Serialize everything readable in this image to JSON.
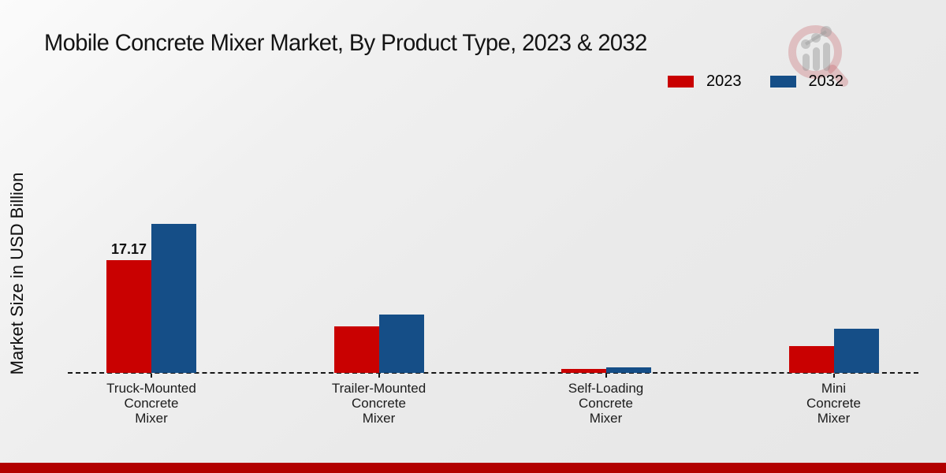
{
  "title": "Mobile Concrete Mixer Market, By Product Type, 2023 & 2032",
  "ylabel": "Market Size in USD Billion",
  "watermark_icon": "market-research-magnifier-logo",
  "footer": {
    "bar_color": "#b20000"
  },
  "chart_data": {
    "type": "bar",
    "title": "Mobile Concrete Mixer Market, By Product Type, 2023 & 2032",
    "xlabel": "",
    "ylabel": "Market Size in USD Billion",
    "categories": [
      "Truck-Mounted\nConcrete\nMixer",
      "Trailer-Mounted\nConcrete\nMixer",
      "Self-Loading\nConcrete\nMixer",
      "Mini\nConcrete\nMixer"
    ],
    "series": [
      {
        "name": "2023",
        "color": "#c90101",
        "values": [
          17.17,
          7.1,
          0.66,
          4.1
        ]
      },
      {
        "name": "2032",
        "color": "#154e87",
        "values": [
          22.7,
          8.9,
          0.9,
          6.7
        ]
      }
    ],
    "annotations": [
      {
        "series_index": 0,
        "category_index": 0,
        "text": "17.17"
      }
    ],
    "ylim": [
      0,
      24
    ],
    "yaxis_ticks_visible": false,
    "grid": false,
    "baseline_style": "dashed",
    "legend_position": "top-right"
  }
}
